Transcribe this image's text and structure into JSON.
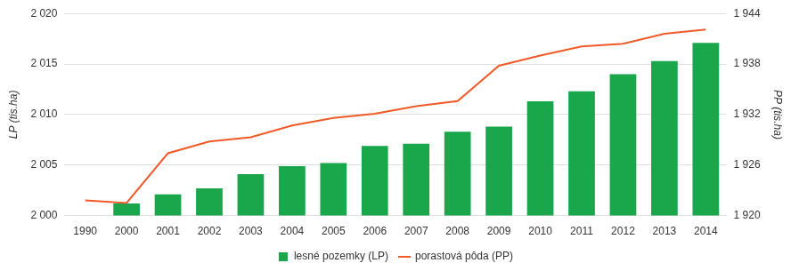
{
  "chart_data": {
    "type": "bar",
    "ylabel": "LP (tis.ha)",
    "y2label": "PP (tis.ha)",
    "categories": [
      "1990",
      "2000",
      "2001",
      "2002",
      "2003",
      "2004",
      "2005",
      "2006",
      "2007",
      "2008",
      "2009",
      "2010",
      "2011",
      "2012",
      "2013",
      "2014"
    ],
    "series": [
      {
        "name": "lesné pozemky (LP)",
        "type": "bar",
        "color": "#1aa64b",
        "values": [
          null,
          2001.2,
          2002.1,
          2002.7,
          2004.1,
          2004.9,
          2005.2,
          2006.9,
          2007.1,
          2008.3,
          2008.8,
          2011.3,
          2012.3,
          2014.0,
          2015.3,
          2017.1
        ]
      },
      {
        "name": "porastová pôda (PP)",
        "type": "line",
        "color": "#f05a28",
        "axis": "y2",
        "marker": "none",
        "line_style": "solid",
        "values": [
          1921.8,
          1921.5,
          1927.4,
          1928.8,
          1929.3,
          1930.7,
          1931.6,
          1932.1,
          1933.0,
          1933.6,
          1937.8,
          1939.0,
          1940.1,
          1940.4,
          1941.6,
          1942.1
        ]
      }
    ],
    "ylim": [
      2000,
      2020
    ],
    "yticks": [
      {
        "value": 2000,
        "label": "2 000"
      },
      {
        "value": 2005,
        "label": "2 005"
      },
      {
        "value": 2010,
        "label": "2 010"
      },
      {
        "value": 2015,
        "label": "2 015"
      },
      {
        "value": 2020,
        "label": "2 020"
      }
    ],
    "y2lim": [
      1920,
      1944
    ],
    "y2ticks": [
      {
        "value": 1920,
        "label": "1 920"
      },
      {
        "value": 1926,
        "label": "1 926"
      },
      {
        "value": 1932,
        "label": "1 932"
      },
      {
        "value": 1938,
        "label": "1 938"
      },
      {
        "value": 1944,
        "label": "1 944"
      }
    ],
    "grid": true,
    "legend": "bottom"
  }
}
